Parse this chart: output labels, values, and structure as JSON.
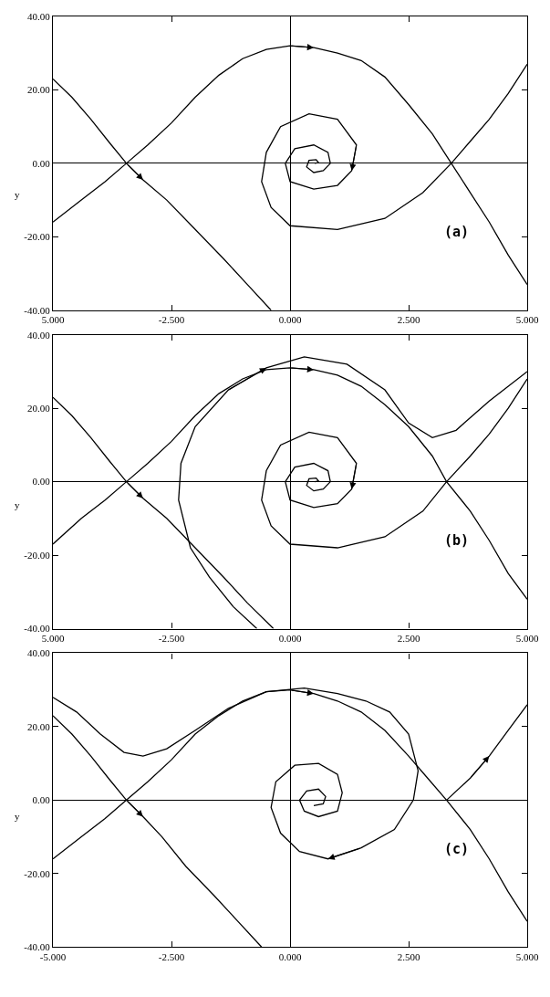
{
  "chart_data": [
    {
      "type": "line",
      "xlim": [
        -5,
        5
      ],
      "ylim": [
        -40,
        40
      ],
      "ylabel": "y",
      "annotations": [
        "(a)"
      ],
      "xticks": [
        {
          "value": -5,
          "label": "5.000"
        },
        {
          "value": -2.5,
          "label": "-2.500"
        },
        {
          "value": 0,
          "label": "0.000"
        },
        {
          "value": 2.5,
          "label": "2.500"
        },
        {
          "value": 5,
          "label": "5.000"
        }
      ],
      "yticks": [
        {
          "value": -40,
          "label": "-40.00"
        },
        {
          "value": -20,
          "label": "-20.00"
        },
        {
          "value": 0,
          "label": "0.00"
        },
        {
          "value": 20,
          "label": "20.00"
        },
        {
          "value": 40,
          "label": "40.00"
        }
      ],
      "series": [
        {
          "color": "#000000",
          "x": [
            -5,
            -4.6,
            -4.2,
            -3.8,
            -3.45,
            -3.1,
            -2.6,
            -2,
            -1.4,
            -0.9,
            -0.4
          ],
          "values": [
            23,
            18,
            12,
            5.5,
            0,
            -4.5,
            -10,
            -18,
            -26,
            -33,
            -40
          ]
        },
        {
          "color": "#000000",
          "x": [
            -5,
            -4.4,
            -3.9,
            -3.45,
            -3,
            -2.5,
            -2,
            -1.5,
            -1,
            -0.5,
            0,
            0.5,
            1,
            1.5,
            2,
            2.5,
            3,
            3.4,
            3.8,
            4.2,
            4.6,
            5
          ],
          "values": [
            -16,
            -10,
            -5,
            0,
            5,
            11,
            18,
            24,
            28.5,
            31,
            32,
            31.5,
            30,
            28,
            23.5,
            16,
            8,
            0,
            -8,
            -16,
            -25,
            -33
          ]
        },
        {
          "color": "#000000",
          "x": [
            5,
            4.6,
            4.2,
            3.8,
            3.4,
            2.8,
            2,
            1,
            0,
            -0.4,
            -0.6,
            -0.5,
            -0.2,
            0.4,
            1,
            1.4,
            1.3,
            1,
            0.5,
            0,
            -0.1,
            0.1,
            0.5,
            0.8,
            0.85,
            0.7,
            0.5,
            0.35,
            0.4,
            0.55,
            0.6,
            0.52
          ],
          "values": [
            27,
            19,
            12,
            6,
            0,
            -8,
            -15,
            -18,
            -17,
            -12,
            -5,
            3,
            10,
            13.5,
            12,
            5,
            -2,
            -6,
            -7,
            -5,
            0,
            4,
            5,
            3,
            0,
            -2,
            -2.5,
            -1,
            0.8,
            1,
            0.2,
            0
          ]
        }
      ]
    },
    {
      "type": "line",
      "xlim": [
        -5,
        5
      ],
      "ylim": [
        -40,
        40
      ],
      "ylabel": "y",
      "annotations": [
        "(b)"
      ],
      "xticks": [
        {
          "value": -5,
          "label": "5.000"
        },
        {
          "value": -2.5,
          "label": "-2.500"
        },
        {
          "value": 0,
          "label": "0.000"
        },
        {
          "value": 2.5,
          "label": "2.500"
        },
        {
          "value": 5,
          "label": "5.000"
        }
      ],
      "yticks": [
        {
          "value": -40,
          "label": "-40.00"
        },
        {
          "value": -20,
          "label": "-20.00"
        },
        {
          "value": 0,
          "label": "0.00"
        },
        {
          "value": 20,
          "label": "20.00"
        },
        {
          "value": 40,
          "label": "40.00"
        }
      ],
      "series": [
        {
          "color": "#000000",
          "x": [
            -5,
            -4.6,
            -4.2,
            -3.8,
            -3.45,
            -3.1,
            -2.6,
            -2,
            -1.4,
            -0.9,
            -0.35
          ],
          "values": [
            23,
            18,
            12,
            5.5,
            0,
            -4.5,
            -10,
            -18,
            -26,
            -33,
            -40
          ]
        },
        {
          "color": "#000000",
          "x": [
            -5,
            -4.4,
            -3.9,
            -3.45,
            -3,
            -2.5,
            -2,
            -1.5,
            -1,
            -0.5,
            0,
            0.5,
            1,
            1.5,
            2,
            2.5,
            3,
            3.3,
            3.8,
            4.2,
            4.6,
            5
          ],
          "values": [
            -17,
            -10,
            -5,
            0,
            5,
            11,
            18,
            24,
            28,
            30.5,
            31,
            30.5,
            29,
            26,
            21,
            15,
            7,
            0,
            -8,
            -16,
            -25,
            -32
          ]
        },
        {
          "color": "#000000",
          "x": [
            -0.7,
            -1.2,
            -1.7,
            -2.1,
            -2.35,
            -2.3,
            -2,
            -1.3,
            -0.5,
            0.3,
            1.2,
            2,
            2.5,
            3,
            3.5,
            4.2,
            5
          ],
          "values": [
            -40,
            -34,
            -26,
            -18,
            -5,
            5,
            15,
            25,
            31,
            34,
            32,
            25,
            16,
            12,
            14,
            22,
            30
          ]
        },
        {
          "color": "#000000",
          "x": [
            5,
            4.6,
            4.2,
            3.8,
            3.3,
            2.8,
            2,
            1,
            0,
            -0.4,
            -0.6,
            -0.5,
            -0.2,
            0.4,
            1,
            1.4,
            1.3,
            1,
            0.5,
            0,
            -0.1,
            0.1,
            0.5,
            0.8,
            0.85,
            0.7,
            0.5,
            0.35,
            0.4,
            0.55,
            0.6,
            0.52
          ],
          "values": [
            28,
            20,
            13,
            7,
            0,
            -8,
            -15,
            -18,
            -17,
            -12,
            -5,
            3,
            10,
            13.5,
            12,
            5,
            -2,
            -6,
            -7,
            -5,
            0,
            4,
            5,
            3,
            0,
            -2,
            -2.5,
            -1,
            0.8,
            1,
            0.2,
            0
          ]
        }
      ]
    },
    {
      "type": "line",
      "xlim": [
        -5,
        5
      ],
      "ylim": [
        -40,
        40
      ],
      "ylabel": "y",
      "annotations": [
        "(c)"
      ],
      "xticks": [
        {
          "value": -5,
          "label": "-5.000"
        },
        {
          "value": -2.5,
          "label": "-2.500"
        },
        {
          "value": 0,
          "label": "0.000"
        },
        {
          "value": 2.5,
          "label": "2.500"
        },
        {
          "value": 5,
          "label": "5.000"
        }
      ],
      "yticks": [
        {
          "value": -40,
          "label": "-40.00"
        },
        {
          "value": -20,
          "label": "-20.00"
        },
        {
          "value": 0,
          "label": "0.00"
        },
        {
          "value": 20,
          "label": "20.00"
        },
        {
          "value": 40,
          "label": "40.00"
        }
      ],
      "series": [
        {
          "color": "#000000",
          "x": [
            -5,
            -4.6,
            -4.2,
            -3.8,
            -3.45,
            -3.1,
            -2.7,
            -2.2,
            -1.6,
            -1.1,
            -0.6
          ],
          "values": [
            23,
            18,
            12,
            5.5,
            0,
            -4.5,
            -10,
            -18,
            -26,
            -33,
            -40
          ]
        },
        {
          "color": "#000000",
          "x": [
            -5,
            -4.4,
            -3.9,
            -3.45,
            -3,
            -2.5,
            -2,
            -1.5,
            -1,
            -0.5,
            0,
            0.5,
            1,
            1.5,
            2,
            2.5,
            2.9,
            3.3,
            3.8,
            4.2,
            4.6,
            5
          ],
          "values": [
            -16,
            -10,
            -5,
            0,
            5,
            11,
            18,
            23,
            27,
            29.5,
            30,
            29,
            27,
            24,
            19,
            12,
            6,
            0,
            -8,
            -16,
            -25,
            -33
          ]
        },
        {
          "color": "#000000",
          "x": [
            -5,
            -4.5,
            -4,
            -3.5,
            -3.1,
            -2.6,
            -2,
            -1.3,
            -0.5,
            0.3,
            1,
            1.6,
            2.1,
            2.5,
            2.7,
            2.6,
            2.2,
            1.5,
            0.8,
            0.2,
            -0.2,
            -0.4,
            -0.3,
            0.1,
            0.6,
            1,
            1.1,
            1,
            0.6,
            0.3,
            0.2,
            0.35,
            0.6,
            0.75,
            0.7,
            0.5
          ],
          "values": [
            28,
            24,
            18,
            13,
            12,
            14,
            19,
            25,
            29.5,
            30.5,
            29,
            27,
            24,
            18,
            8,
            0,
            -8,
            -13,
            -16,
            -14,
            -9,
            -2,
            5,
            9.5,
            10,
            7,
            2,
            -3,
            -4.5,
            -3,
            0,
            2.5,
            3,
            1,
            -1,
            -1.5
          ]
        },
        {
          "color": "#000000",
          "x": [
            3.3,
            3.8,
            4.2,
            4.6,
            5
          ],
          "values": [
            0,
            6,
            12,
            19,
            26
          ]
        }
      ]
    }
  ]
}
